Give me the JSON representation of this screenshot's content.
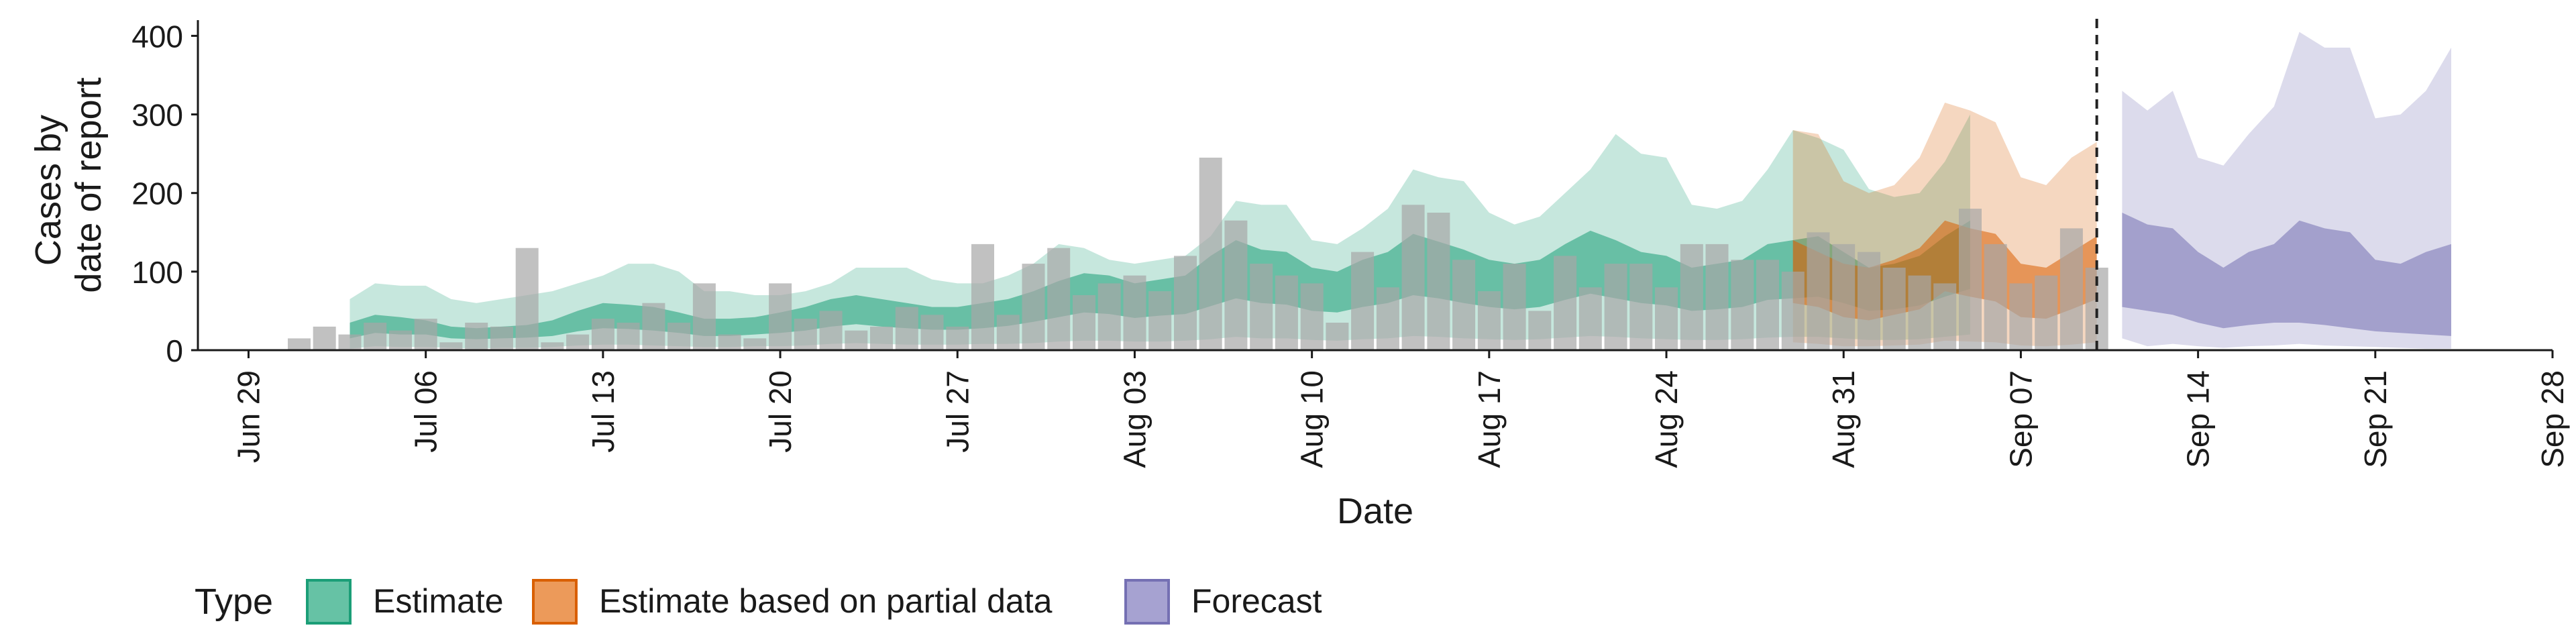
{
  "chart_data": {
    "type": "area",
    "xlabel": "Date",
    "ylabel_lines": [
      "Cases by",
      "date of report"
    ],
    "ylim": [
      0,
      420
    ],
    "yticks": [
      0,
      100,
      200,
      300,
      400
    ],
    "xlim": [
      "2020-06-27",
      "2020-09-28"
    ],
    "xticks": [
      {
        "date": "2020-06-29",
        "label": "Jun 29"
      },
      {
        "date": "2020-07-06",
        "label": "Jul 06"
      },
      {
        "date": "2020-07-13",
        "label": "Jul 13"
      },
      {
        "date": "2020-07-20",
        "label": "Jul 20"
      },
      {
        "date": "2020-07-27",
        "label": "Jul 27"
      },
      {
        "date": "2020-08-03",
        "label": "Aug 03"
      },
      {
        "date": "2020-08-10",
        "label": "Aug 10"
      },
      {
        "date": "2020-08-17",
        "label": "Aug 17"
      },
      {
        "date": "2020-08-24",
        "label": "Aug 24"
      },
      {
        "date": "2020-08-31",
        "label": "Aug 31"
      },
      {
        "date": "2020-09-07",
        "label": "Sep 07"
      },
      {
        "date": "2020-09-14",
        "label": "Sep 14"
      },
      {
        "date": "2020-09-21",
        "label": "Sep 21"
      },
      {
        "date": "2020-09-28",
        "label": "Sep 28"
      }
    ],
    "vline_date": "2020-09-10",
    "grid": false,
    "legend": {
      "title": "Type",
      "position": "bottom",
      "items": [
        {
          "label": "Estimate",
          "fill": "#66c2a5",
          "stroke": "#1b9e77"
        },
        {
          "label": "Estimate based on partial data",
          "fill": "#ec9a5a",
          "stroke": "#d95f02"
        },
        {
          "label": "Forecast",
          "fill": "#a6a2d1",
          "stroke": "#7570b3"
        }
      ]
    },
    "bars_color": "#a6a6a6",
    "bars": {
      "start_date": "2020-07-01",
      "values": [
        15,
        30,
        20,
        35,
        25,
        40,
        10,
        35,
        30,
        130,
        10,
        20,
        40,
        35,
        60,
        35,
        85,
        20,
        15,
        85,
        40,
        50,
        25,
        30,
        55,
        45,
        30,
        135,
        45,
        110,
        130,
        70,
        85,
        95,
        75,
        120,
        245,
        165,
        110,
        95,
        85,
        35,
        125,
        80,
        185,
        175,
        115,
        75,
        110,
        50,
        120,
        80,
        110,
        110,
        80,
        135,
        135,
        115,
        115,
        100,
        150,
        135,
        125,
        105,
        95,
        85,
        180,
        135,
        85,
        95,
        155,
        105
      ]
    },
    "series": [
      {
        "name": "Estimate",
        "start_date": "2020-07-03",
        "color": "#1b9e77",
        "outer_upper": [
          65,
          85,
          82,
          82,
          65,
          60,
          65,
          70,
          75,
          85,
          95,
          110,
          110,
          100,
          75,
          75,
          70,
          70,
          75,
          85,
          105,
          105,
          105,
          90,
          85,
          85,
          95,
          110,
          135,
          130,
          115,
          110,
          115,
          120,
          145,
          190,
          185,
          185,
          140,
          135,
          155,
          180,
          230,
          220,
          215,
          175,
          160,
          170,
          200,
          230,
          275,
          250,
          245,
          185,
          180,
          190,
          230,
          280,
          270,
          255,
          205,
          195,
          200,
          240,
          300
        ],
        "inner_upper": [
          35,
          45,
          42,
          38,
          30,
          28,
          30,
          32,
          38,
          50,
          60,
          58,
          55,
          48,
          40,
          40,
          42,
          48,
          55,
          65,
          70,
          65,
          60,
          55,
          55,
          60,
          65,
          75,
          88,
          98,
          95,
          85,
          90,
          95,
          120,
          140,
          128,
          125,
          105,
          100,
          115,
          125,
          148,
          138,
          128,
          115,
          110,
          115,
          135,
          152,
          140,
          125,
          120,
          105,
          110,
          115,
          135,
          140,
          145,
          125,
          105,
          110,
          120,
          145,
          165
        ],
        "inner_lower": [
          15,
          22,
          20,
          20,
          15,
          14,
          15,
          16,
          18,
          24,
          28,
          27,
          25,
          22,
          18,
          18,
          20,
          22,
          25,
          30,
          33,
          30,
          28,
          26,
          26,
          28,
          31,
          36,
          42,
          48,
          46,
          41,
          44,
          46,
          56,
          66,
          60,
          58,
          50,
          48,
          55,
          60,
          70,
          66,
          60,
          55,
          52,
          55,
          64,
          72,
          66,
          60,
          57,
          50,
          52,
          55,
          64,
          66,
          68,
          60,
          50,
          52,
          57,
          68,
          78
        ],
        "outer_lower": [
          2,
          5,
          4,
          4,
          3,
          2,
          3,
          3,
          4,
          6,
          7,
          7,
          6,
          5,
          4,
          4,
          5,
          5,
          6,
          8,
          9,
          8,
          7,
          7,
          7,
          8,
          8,
          9,
          11,
          12,
          12,
          11,
          11,
          12,
          14,
          17,
          15,
          15,
          13,
          12,
          14,
          15,
          18,
          17,
          15,
          14,
          13,
          14,
          16,
          18,
          17,
          15,
          14,
          13,
          13,
          14,
          16,
          17,
          17,
          15,
          13,
          13,
          14,
          17,
          20
        ]
      },
      {
        "name": "Estimate based on partial data",
        "start_date": "2020-08-29",
        "color": "#d95f02",
        "outer_upper": [
          280,
          275,
          215,
          200,
          210,
          245,
          315,
          305,
          290,
          220,
          210,
          245,
          265
        ],
        "inner_upper": [
          140,
          125,
          110,
          105,
          115,
          130,
          165,
          155,
          148,
          110,
          105,
          125,
          145
        ],
        "inner_lower": [
          60,
          55,
          42,
          38,
          45,
          52,
          75,
          68,
          62,
          42,
          40,
          52,
          65
        ],
        "outer_lower": [
          10,
          8,
          5,
          5,
          6,
          7,
          12,
          11,
          10,
          6,
          5,
          7,
          10
        ]
      },
      {
        "name": "Forecast",
        "start_date": "2020-09-11",
        "color": "#7570b3",
        "outer_upper": [
          330,
          305,
          330,
          245,
          235,
          275,
          310,
          405,
          385,
          385,
          295,
          300,
          330,
          385
        ],
        "inner_upper": [
          175,
          160,
          155,
          125,
          105,
          125,
          135,
          165,
          155,
          150,
          115,
          110,
          125,
          135
        ],
        "inner_lower": [
          55,
          50,
          45,
          35,
          28,
          32,
          35,
          35,
          32,
          28,
          24,
          22,
          20,
          18
        ],
        "outer_lower": [
          15,
          5,
          8,
          5,
          3,
          5,
          6,
          8,
          6,
          5,
          4,
          3,
          2,
          2
        ]
      }
    ]
  }
}
